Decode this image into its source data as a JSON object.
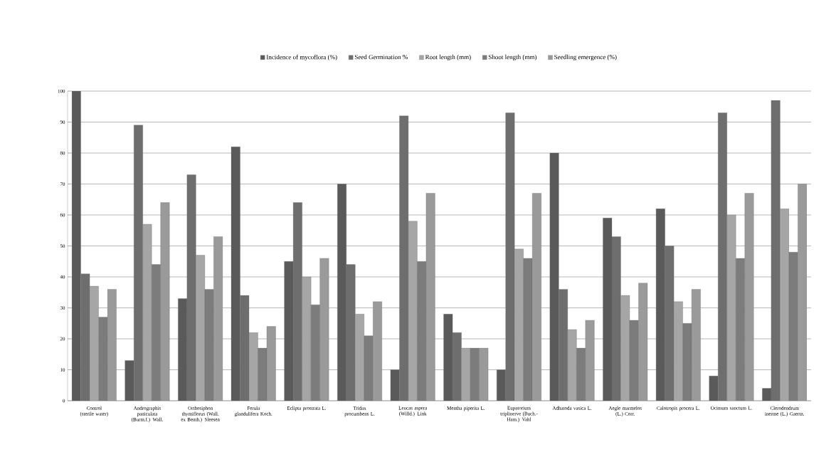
{
  "chart_data": {
    "type": "bar",
    "categories": [
      "Control (sterile water)",
      "Andrographis paniculata (Burm.f.) Wall.",
      "Orthosiphon thymiflorus (Wall. ex Benth.) Sleesen",
      "Ferula glandulifera Koch.",
      "Eclipta prostrata L.",
      "Tridax procumbens L.",
      "Leucas aspera (Willd.) Link",
      "Mentha piperita L.",
      "Eupatorium triplinerve (Buch.-Ham.) Vahl",
      "Adhatoda vasica L.",
      "Aegle marmelos (L.) Corr.",
      "Calotropis procera L.",
      "Ocimum sanctum L.",
      "Clerodendrum inerme (L.) Gaertn."
    ],
    "series": [
      {
        "name": "Incidence of mycoflora (%)",
        "color": "#5a5a5a",
        "values": [
          100,
          13,
          33,
          82,
          45,
          70,
          10,
          28,
          10,
          80,
          59,
          62,
          8,
          4
        ]
      },
      {
        "name": "Seed Germination %",
        "color": "#6e6e6e",
        "values": [
          41,
          89,
          73,
          34,
          64,
          44,
          92,
          22,
          93,
          36,
          53,
          50,
          93,
          97
        ]
      },
      {
        "name": "Root length (mm)",
        "color": "#a6a6a6",
        "values": [
          37,
          57,
          47,
          22,
          40,
          28,
          58,
          17,
          49,
          23,
          34,
          32,
          60,
          62
        ]
      },
      {
        "name": "Shoot length (mm)",
        "color": "#7c7c7c",
        "values": [
          27,
          44,
          36,
          17,
          31,
          21,
          45,
          17,
          46,
          17,
          26,
          25,
          46,
          48
        ]
      },
      {
        "name": "Seedling emergence (%)",
        "color": "#9a9a9a",
        "values": [
          36,
          64,
          53,
          24,
          46,
          32,
          67,
          17,
          67,
          26,
          38,
          36,
          67,
          70
        ]
      }
    ],
    "ylim": [
      0,
      100
    ],
    "yticks": [
      0,
      10,
      20,
      30,
      40,
      50,
      60,
      70,
      80,
      90,
      100
    ],
    "grid": "y",
    "legend": "top"
  }
}
